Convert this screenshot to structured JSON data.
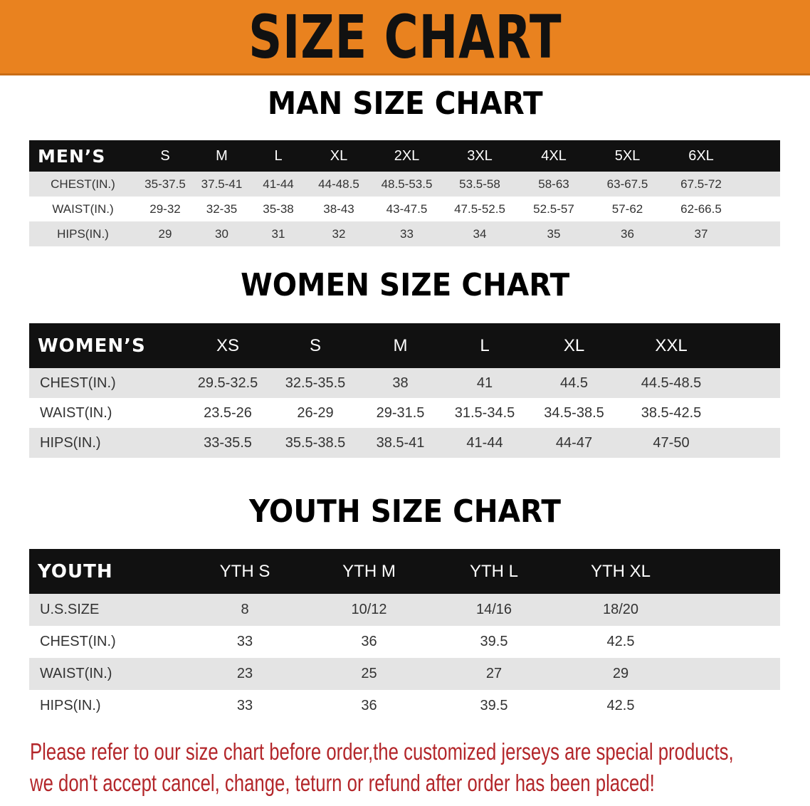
{
  "banner_title": "SIZE CHART",
  "colors": {
    "banner": "#e9821f",
    "header_row": "#111111",
    "note_text": "#b3262a",
    "stripe": "#e4e4e4"
  },
  "men": {
    "title": "MAN SIZE CHART",
    "header": [
      "MEN’S",
      "S",
      "M",
      "L",
      "XL",
      "2XL",
      "3XL",
      "4XL",
      "5XL",
      "6XL"
    ],
    "rows": [
      [
        "CHEST(IN.)",
        "35-37.5",
        "37.5-41",
        "41-44",
        "44-48.5",
        "48.5-53.5",
        "53.5-58",
        "58-63",
        "63-67.5",
        "67.5-72"
      ],
      [
        "WAIST(IN.)",
        "29-32",
        "32-35",
        "35-38",
        "38-43",
        "43-47.5",
        "47.5-52.5",
        "52.5-57",
        "57-62",
        "62-66.5"
      ],
      [
        "HIPS(IN.)",
        "29",
        "30",
        "31",
        "32",
        "33",
        "34",
        "35",
        "36",
        "37"
      ]
    ]
  },
  "women": {
    "title": "WOMEN SIZE CHART",
    "header": [
      "WOMEN’S",
      "XS",
      "S",
      "M",
      "L",
      "XL",
      "XXL"
    ],
    "rows": [
      [
        "CHEST(IN.)",
        "29.5-32.5",
        "32.5-35.5",
        "38",
        "41",
        "44.5",
        "44.5-48.5"
      ],
      [
        "WAIST(IN.)",
        "23.5-26",
        "26-29",
        "29-31.5",
        "31.5-34.5",
        "34.5-38.5",
        "38.5-42.5"
      ],
      [
        "HIPS(IN.)",
        "33-35.5",
        "35.5-38.5",
        "38.5-41",
        "41-44",
        "44-47",
        "47-50"
      ]
    ]
  },
  "youth": {
    "title": "YOUTH SIZE CHART",
    "header": [
      "YOUTH",
      "YTH S",
      "YTH M",
      "YTH L",
      "YTH XL"
    ],
    "rows": [
      [
        "U.S.SIZE",
        "8",
        "10/12",
        "14/16",
        "18/20"
      ],
      [
        "CHEST(IN.)",
        "33",
        "36",
        "39.5",
        "42.5"
      ],
      [
        "WAIST(IN.)",
        "23",
        "25",
        "27",
        "29"
      ],
      [
        "HIPS(IN.)",
        "33",
        "36",
        "39.5",
        "42.5"
      ]
    ]
  },
  "note": {
    "line1": "Please refer to our size chart before order,the customized jerseys are special products,",
    "line2": "we don't accept cancel, change, teturn or refund after order has been placed!"
  }
}
